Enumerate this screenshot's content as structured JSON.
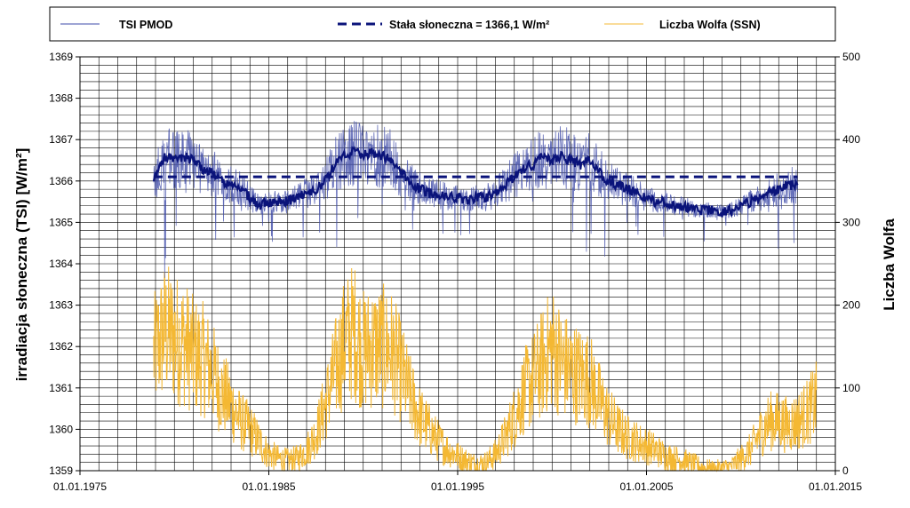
{
  "chart_data": {
    "type": "line",
    "xlabel": "",
    "ylabel": "irradiacja słoneczna (TSI) [W/m²]",
    "y2label": "Liczba Wolfa",
    "x_ticks": [
      "01.01.1975",
      "01.01.1985",
      "01.01.1995",
      "01.01.2005",
      "01.01.2015"
    ],
    "xlim": [
      1975,
      2015
    ],
    "ylim": [
      1359,
      1369
    ],
    "y_ticks": [
      1359,
      1360,
      1361,
      1362,
      1363,
      1364,
      1365,
      1366,
      1367,
      1368,
      1369
    ],
    "y2lim": [
      0,
      500
    ],
    "y2_ticks": [
      0,
      100,
      200,
      300,
      400,
      500
    ],
    "grid": true,
    "legend_position": "top",
    "series": [
      {
        "name": "TSI PMOD",
        "axis": "left",
        "color": "#3d4aa8",
        "style": "thin-noisy",
        "x": [
          1978.9,
          1979.5,
          1980.0,
          1980.5,
          1981.0,
          1981.5,
          1982.0,
          1982.5,
          1983.0,
          1983.5,
          1984.0,
          1984.5,
          1985.0,
          1985.5,
          1986.0,
          1986.5,
          1987.0,
          1987.5,
          1988.0,
          1988.5,
          1989.0,
          1989.5,
          1990.0,
          1990.5,
          1991.0,
          1991.5,
          1992.0,
          1992.5,
          1993.0,
          1993.5,
          1994.0,
          1994.5,
          1995.0,
          1995.5,
          1996.0,
          1996.5,
          1997.0,
          1997.5,
          1998.0,
          1998.5,
          1999.0,
          1999.5,
          2000.0,
          2000.5,
          2001.0,
          2001.5,
          2002.0,
          2002.5,
          2003.0,
          2003.5,
          2004.0,
          2004.5,
          2005.0,
          2005.5,
          2006.0,
          2006.5,
          2007.0,
          2007.5,
          2008.0,
          2008.5,
          2009.0,
          2009.5,
          2010.0,
          2010.5,
          2011.0,
          2011.5,
          2012.0,
          2012.5,
          2013.0
        ],
        "values": [
          1366.0,
          1366.6,
          1366.5,
          1366.6,
          1366.5,
          1366.3,
          1366.2,
          1366.0,
          1365.9,
          1365.8,
          1365.6,
          1365.4,
          1365.5,
          1365.5,
          1365.5,
          1365.6,
          1365.7,
          1365.8,
          1366.0,
          1366.4,
          1366.6,
          1366.7,
          1366.6,
          1366.7,
          1366.6,
          1366.5,
          1366.2,
          1366.0,
          1365.8,
          1365.7,
          1365.7,
          1365.6,
          1365.6,
          1365.5,
          1365.6,
          1365.6,
          1365.7,
          1365.9,
          1366.1,
          1366.3,
          1366.4,
          1366.6,
          1366.5,
          1366.6,
          1366.5,
          1366.4,
          1366.5,
          1366.2,
          1366.0,
          1365.9,
          1365.8,
          1365.7,
          1365.6,
          1365.5,
          1365.5,
          1365.4,
          1365.4,
          1365.3,
          1365.3,
          1365.3,
          1365.25,
          1365.3,
          1365.4,
          1365.5,
          1365.6,
          1365.7,
          1365.8,
          1365.9,
          1365.9
        ]
      },
      {
        "name": "Stała słoneczna = 1366,1 W/m²",
        "axis": "left",
        "color": "#0a137a",
        "style": "dashed",
        "x": [
          1978.9,
          2013.0
        ],
        "values": [
          1366.1,
          1366.1
        ]
      },
      {
        "name": "Liczba Wolfa (SSN)",
        "axis": "right",
        "color": "#f4b833",
        "style": "thin-noisy",
        "x": [
          1978.9,
          1979.5,
          1980.0,
          1980.5,
          1981.0,
          1981.5,
          1982.0,
          1982.5,
          1983.0,
          1983.5,
          1984.0,
          1984.5,
          1985.0,
          1985.5,
          1986.0,
          1986.5,
          1987.0,
          1987.5,
          1988.0,
          1988.5,
          1989.0,
          1989.5,
          1990.0,
          1990.5,
          1991.0,
          1991.5,
          1992.0,
          1992.5,
          1993.0,
          1993.5,
          1994.0,
          1994.5,
          1995.0,
          1995.5,
          1996.0,
          1996.5,
          1997.0,
          1997.5,
          1998.0,
          1998.5,
          1999.0,
          1999.5,
          2000.0,
          2000.5,
          2001.0,
          2001.5,
          2002.0,
          2002.5,
          2003.0,
          2003.5,
          2004.0,
          2004.5,
          2005.0,
          2005.5,
          2006.0,
          2006.5,
          2007.0,
          2007.5,
          2008.0,
          2008.5,
          2009.0,
          2009.5,
          2010.0,
          2010.5,
          2011.0,
          2011.5,
          2012.0,
          2012.5,
          2013.0,
          2013.5,
          2014.0
        ],
        "values": [
          140,
          170,
          160,
          155,
          140,
          135,
          120,
          95,
          80,
          60,
          50,
          35,
          20,
          15,
          12,
          15,
          25,
          45,
          80,
          120,
          155,
          170,
          145,
          150,
          150,
          145,
          120,
          90,
          65,
          50,
          35,
          25,
          18,
          12,
          8,
          10,
          20,
          40,
          65,
          95,
          110,
          130,
          150,
          130,
          120,
          115,
          110,
          85,
          65,
          50,
          40,
          35,
          30,
          25,
          18,
          15,
          12,
          8,
          4,
          2,
          3,
          5,
          15,
          25,
          45,
          60,
          60,
          55,
          60,
          70,
          85
        ]
      }
    ]
  }
}
